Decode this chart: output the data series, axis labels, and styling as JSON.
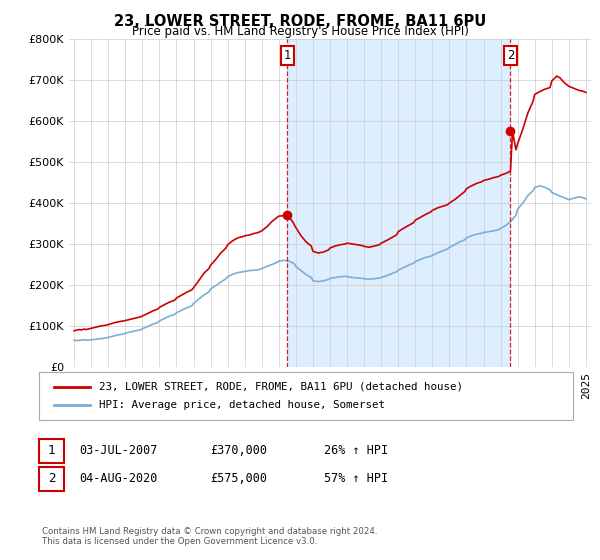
{
  "title": "23, LOWER STREET, RODE, FROME, BA11 6PU",
  "subtitle": "Price paid vs. HM Land Registry's House Price Index (HPI)",
  "property_label": "23, LOWER STREET, RODE, FROME, BA11 6PU (detached house)",
  "hpi_label": "HPI: Average price, detached house, Somerset",
  "footer": "Contains HM Land Registry data © Crown copyright and database right 2024.\nThis data is licensed under the Open Government Licence v3.0.",
  "point1_date": "03-JUL-2007",
  "point1_price": 370000,
  "point1_label": "£370,000",
  "point1_hpi": "26% ↑ HPI",
  "point2_date": "04-AUG-2020",
  "point2_price": 575000,
  "point2_label": "£575,000",
  "point2_hpi": "57% ↑ HPI",
  "p1_x": 2007.5,
  "p2_x": 2020.58,
  "ylim_low": 0,
  "ylim_high": 800000,
  "yticks": [
    0,
    100000,
    200000,
    300000,
    400000,
    500000,
    600000,
    700000,
    800000
  ],
  "xlim_low": 1994.7,
  "xlim_high": 2025.3,
  "property_color": "#cc0000",
  "hpi_color": "#7bafd4",
  "shade_color": "#ddeeff",
  "background_color": "#ffffff",
  "grid_color": "#cccccc",
  "annot_box_color": "#cc0000",
  "property_data_x": [
    1995.0,
    1995.1,
    1995.2,
    1995.3,
    1995.4,
    1995.5,
    1995.6,
    1995.7,
    1995.8,
    1995.9,
    1996.0,
    1996.2,
    1996.4,
    1996.6,
    1996.8,
    1997.0,
    1997.3,
    1997.6,
    1997.9,
    1998.0,
    1998.3,
    1998.6,
    1998.9,
    1999.0,
    1999.3,
    1999.6,
    1999.9,
    2000.0,
    2000.3,
    2000.6,
    2000.9,
    2001.0,
    2001.3,
    2001.6,
    2001.9,
    2002.0,
    2002.3,
    2002.6,
    2002.9,
    2003.0,
    2003.3,
    2003.6,
    2003.9,
    2004.0,
    2004.3,
    2004.6,
    2004.9,
    2005.0,
    2005.3,
    2005.5,
    2005.8,
    2006.0,
    2006.3,
    2006.6,
    2006.9,
    2007.0,
    2007.3,
    2007.5,
    2007.6,
    2007.8,
    2008.0,
    2008.3,
    2008.6,
    2008.9,
    2009.0,
    2009.3,
    2009.6,
    2009.9,
    2010.0,
    2010.3,
    2010.6,
    2010.9,
    2011.0,
    2011.3,
    2011.6,
    2011.9,
    2012.0,
    2012.3,
    2012.6,
    2012.9,
    2013.0,
    2013.3,
    2013.6,
    2013.9,
    2014.0,
    2014.3,
    2014.6,
    2014.9,
    2015.0,
    2015.3,
    2015.6,
    2015.9,
    2016.0,
    2016.3,
    2016.6,
    2016.9,
    2017.0,
    2017.3,
    2017.6,
    2017.9,
    2018.0,
    2018.3,
    2018.6,
    2018.9,
    2019.0,
    2019.3,
    2019.6,
    2019.9,
    2020.0,
    2020.3,
    2020.58,
    2020.7,
    2020.9,
    2021.0,
    2021.3,
    2021.6,
    2021.9,
    2022.0,
    2022.3,
    2022.6,
    2022.9,
    2023.0,
    2023.3,
    2023.5,
    2023.7,
    2024.0,
    2024.3,
    2024.6,
    2024.9,
    2025.0
  ],
  "property_data_y": [
    88000,
    89000,
    90000,
    91000,
    90000,
    91000,
    92000,
    91000,
    92000,
    93000,
    94000,
    96000,
    98000,
    100000,
    101000,
    103000,
    107000,
    110000,
    112000,
    113000,
    116000,
    119000,
    122000,
    124000,
    130000,
    136000,
    141000,
    145000,
    152000,
    158000,
    163000,
    168000,
    175000,
    182000,
    188000,
    193000,
    210000,
    228000,
    240000,
    248000,
    262000,
    278000,
    290000,
    298000,
    308000,
    315000,
    318000,
    320000,
    322000,
    325000,
    328000,
    332000,
    342000,
    355000,
    365000,
    368000,
    369000,
    370000,
    365000,
    355000,
    340000,
    320000,
    305000,
    295000,
    282000,
    278000,
    280000,
    285000,
    290000,
    295000,
    298000,
    300000,
    302000,
    300000,
    298000,
    296000,
    294000,
    292000,
    295000,
    298000,
    302000,
    308000,
    315000,
    322000,
    330000,
    338000,
    345000,
    352000,
    358000,
    365000,
    372000,
    378000,
    382000,
    388000,
    392000,
    396000,
    400000,
    408000,
    418000,
    428000,
    435000,
    442000,
    448000,
    452000,
    455000,
    458000,
    462000,
    465000,
    468000,
    472000,
    478000,
    575000,
    530000,
    545000,
    580000,
    620000,
    648000,
    665000,
    672000,
    678000,
    682000,
    698000,
    710000,
    705000,
    695000,
    685000,
    680000,
    675000,
    672000,
    670000
  ],
  "hpi_data_x": [
    1995.0,
    1995.2,
    1995.4,
    1995.6,
    1995.8,
    1996.0,
    1996.2,
    1996.4,
    1996.6,
    1996.8,
    1997.0,
    1997.3,
    1997.6,
    1997.9,
    1998.0,
    1998.3,
    1998.6,
    1998.9,
    1999.0,
    1999.3,
    1999.6,
    1999.9,
    2000.0,
    2000.3,
    2000.6,
    2000.9,
    2001.0,
    2001.3,
    2001.6,
    2001.9,
    2002.0,
    2002.3,
    2002.6,
    2002.9,
    2003.0,
    2003.3,
    2003.6,
    2003.9,
    2004.0,
    2004.3,
    2004.6,
    2004.9,
    2005.0,
    2005.3,
    2005.6,
    2005.9,
    2006.0,
    2006.3,
    2006.6,
    2006.9,
    2007.0,
    2007.3,
    2007.6,
    2007.9,
    2008.0,
    2008.3,
    2008.6,
    2008.9,
    2009.0,
    2009.3,
    2009.6,
    2009.9,
    2010.0,
    2010.3,
    2010.6,
    2010.9,
    2011.0,
    2011.3,
    2011.6,
    2011.9,
    2012.0,
    2012.3,
    2012.6,
    2012.9,
    2013.0,
    2013.3,
    2013.6,
    2013.9,
    2014.0,
    2014.3,
    2014.6,
    2014.9,
    2015.0,
    2015.3,
    2015.6,
    2015.9,
    2016.0,
    2016.3,
    2016.6,
    2016.9,
    2017.0,
    2017.3,
    2017.6,
    2017.9,
    2018.0,
    2018.3,
    2018.6,
    2018.9,
    2019.0,
    2019.3,
    2019.6,
    2019.9,
    2020.0,
    2020.3,
    2020.6,
    2020.9,
    2021.0,
    2021.3,
    2021.6,
    2021.9,
    2022.0,
    2022.3,
    2022.6,
    2022.9,
    2023.0,
    2023.3,
    2023.6,
    2023.9,
    2024.0,
    2024.3,
    2024.6,
    2024.9,
    2025.0
  ],
  "hpi_data_y": [
    65000,
    64000,
    65000,
    66000,
    65000,
    66000,
    67000,
    68000,
    69000,
    70000,
    72000,
    75000,
    78000,
    80000,
    82000,
    85000,
    88000,
    90000,
    93000,
    98000,
    104000,
    108000,
    112000,
    118000,
    124000,
    128000,
    132000,
    138000,
    144000,
    149000,
    155000,
    165000,
    175000,
    183000,
    190000,
    198000,
    207000,
    215000,
    220000,
    226000,
    230000,
    232000,
    233000,
    235000,
    236000,
    238000,
    240000,
    245000,
    250000,
    255000,
    258000,
    260000,
    258000,
    252000,
    245000,
    235000,
    225000,
    218000,
    210000,
    208000,
    210000,
    213000,
    216000,
    218000,
    220000,
    221000,
    220000,
    218000,
    217000,
    216000,
    215000,
    214000,
    215000,
    217000,
    218000,
    222000,
    227000,
    232000,
    236000,
    242000,
    248000,
    253000,
    257000,
    262000,
    267000,
    270000,
    272000,
    278000,
    283000,
    288000,
    292000,
    298000,
    305000,
    310000,
    315000,
    320000,
    324000,
    326000,
    328000,
    330000,
    332000,
    335000,
    338000,
    345000,
    355000,
    370000,
    385000,
    400000,
    418000,
    430000,
    438000,
    442000,
    438000,
    432000,
    426000,
    420000,
    415000,
    410000,
    408000,
    412000,
    415000,
    412000,
    410000
  ]
}
